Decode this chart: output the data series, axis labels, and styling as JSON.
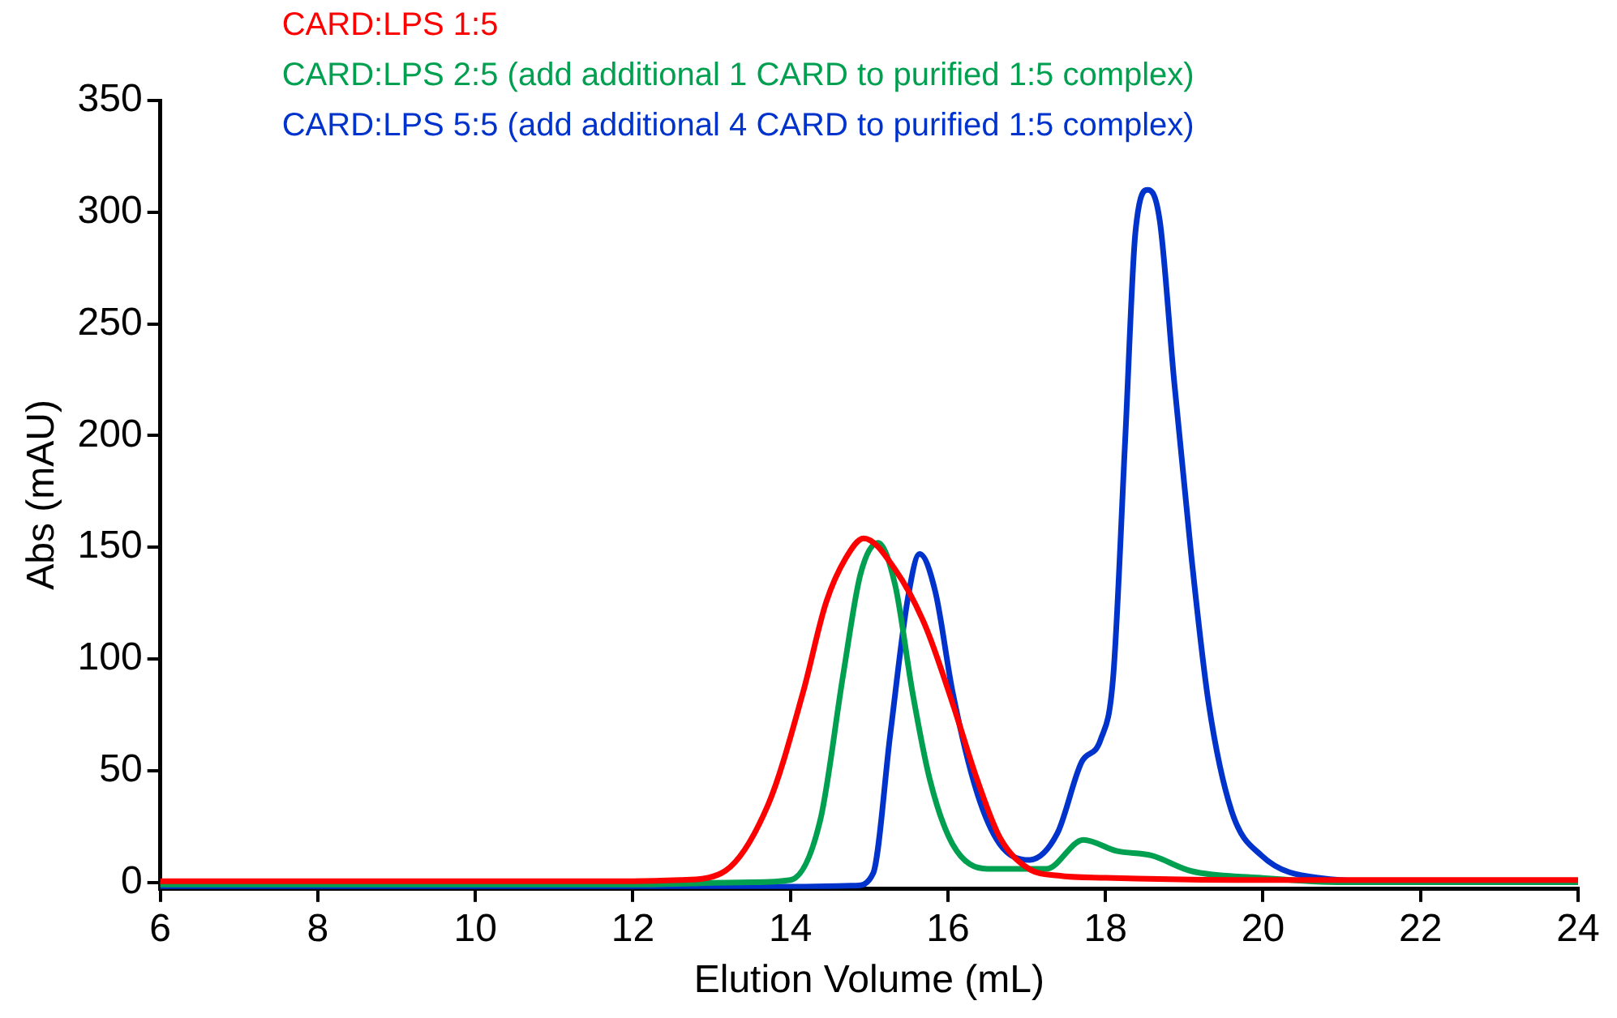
{
  "chart_data": {
    "type": "line",
    "xlabel": "Elution Volume (mL)",
    "ylabel": "Abs (mAU)",
    "xlim": [
      6,
      24
    ],
    "xticks": [
      6,
      8,
      10,
      12,
      14,
      16,
      18,
      20,
      22,
      24
    ],
    "ylim": [
      -3,
      350
    ],
    "yticks": [
      0,
      50,
      100,
      150,
      200,
      250,
      300,
      350
    ],
    "grid": false,
    "legend": "top left",
    "marker": "none",
    "line_style": "solid",
    "series": [
      {
        "name": "CARD:LPS 1:5",
        "color": "#ff0000",
        "x": [
          6,
          8,
          10,
          12,
          12.6,
          13.12,
          13.72,
          14.16,
          14.45,
          14.7,
          14.93,
          15.33,
          15.71,
          16.06,
          16.37,
          16.66,
          17.03,
          17.4,
          18,
          20,
          22,
          24
        ],
        "values": [
          0.5,
          0.5,
          0.5,
          0.5,
          1,
          4,
          35,
          85,
          125,
          145,
          154,
          140,
          115,
          80,
          46,
          20,
          6,
          3,
          2,
          1,
          1,
          1
        ]
      },
      {
        "name": "CARD:LPS 2:5 (add additional 1 CARD to purified 1:5 complex)",
        "color": "#00a050",
        "x": [
          6,
          8,
          10,
          12,
          13.5,
          14.0,
          14.38,
          14.67,
          14.89,
          15.11,
          15.33,
          15.55,
          15.77,
          16.06,
          16.5,
          17.25,
          17.72,
          18.14,
          18.58,
          19.09,
          19.97,
          21,
          24
        ],
        "values": [
          -1,
          -1,
          -1,
          -1,
          0,
          1,
          28,
          93,
          138,
          152,
          133,
          85,
          46,
          17,
          6,
          6,
          19,
          14,
          12,
          5,
          2,
          0,
          0
        ]
      },
      {
        "name": "CARD:LPS 5:5 (add additional 4 CARD to purified 1:5 complex)",
        "color": "#0033cc",
        "x": [
          6,
          8,
          10,
          12,
          14,
          14.83,
          15.05,
          15.27,
          15.49,
          15.64,
          15.84,
          16.06,
          16.37,
          16.66,
          17.03,
          17.39,
          17.7,
          17.94,
          18.1,
          18.25,
          18.38,
          18.54,
          18.69,
          18.87,
          19.09,
          19.31,
          19.6,
          19.98,
          20.7,
          22,
          24
        ],
        "values": [
          -2,
          -2,
          -2,
          -2,
          -2,
          -1.5,
          4,
          67,
          127,
          147,
          130,
          85,
          40,
          17,
          10,
          22,
          54,
          64,
          93,
          198,
          291,
          310,
          296,
          225,
          146,
          80,
          32,
          12,
          2,
          0,
          0
        ]
      }
    ]
  }
}
